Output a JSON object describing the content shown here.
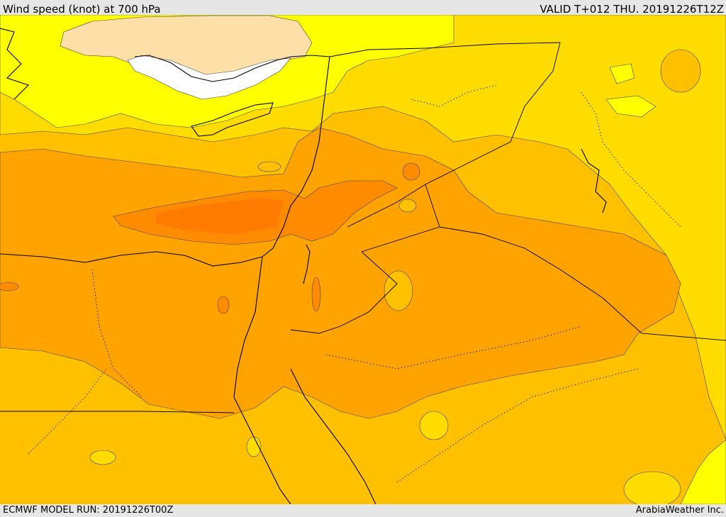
{
  "header": {
    "title": "Wind speed (knot) at 700 hPa",
    "valid": "VALID T+012 THU. 20191226T12Z"
  },
  "footer": {
    "model_run": "ECMWF MODEL RUN: 20191226T00Z",
    "credit": "ArabiaWeather Inc."
  },
  "map": {
    "variable": "wind speed",
    "level": "700 hPa",
    "units": "knot",
    "colors": {
      "calm": "#ffffff",
      "light": "#ffdfa8",
      "yellow": "#ffff00",
      "gold": "#ffdc00",
      "amber": "#ffc000",
      "orange": "#ffa300",
      "strong": "#ff8c00",
      "strongest": "#ff7c00",
      "border": "#000000"
    }
  }
}
